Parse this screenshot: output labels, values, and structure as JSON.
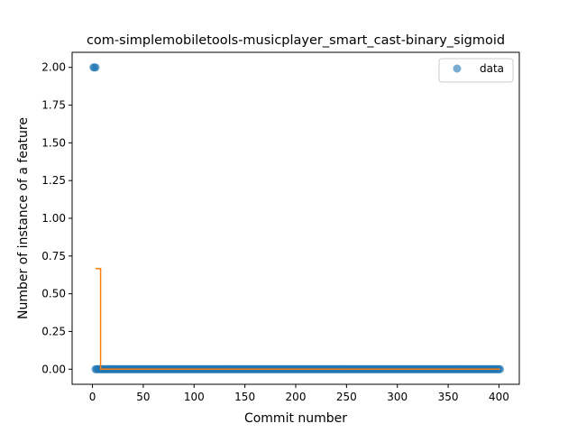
{
  "chart_data": {
    "type": "scatter",
    "title": "com-simplemobiletools-musicplayer_smart_cast-binary_sigmoid",
    "xlabel": "Commit number",
    "ylabel": "Number of instance of a feature",
    "xlim": [
      -20,
      420
    ],
    "ylim": [
      -0.1,
      2.1
    ],
    "xticks": [
      0,
      50,
      100,
      150,
      200,
      250,
      300,
      350,
      400
    ],
    "yticks": [
      "0.00",
      "0.25",
      "0.50",
      "0.75",
      "1.00",
      "1.25",
      "1.50",
      "1.75",
      "2.00"
    ],
    "legend": {
      "position": "top-right",
      "entries": [
        "data"
      ]
    },
    "grid": false,
    "series": [
      {
        "name": "data",
        "kind": "scatter",
        "color": "#1f77b4",
        "points_high": [
          [
            1,
            2.0
          ],
          [
            2,
            2.0
          ],
          [
            3,
            2.0
          ]
        ],
        "baseline": {
          "x_start": 3,
          "x_end": 401,
          "y": 0.0
        }
      },
      {
        "kind": "line",
        "color": "#ff7f0e",
        "x": [
          3,
          8,
          8,
          401
        ],
        "y": [
          0.667,
          0.667,
          0.0,
          0.0
        ]
      }
    ]
  }
}
